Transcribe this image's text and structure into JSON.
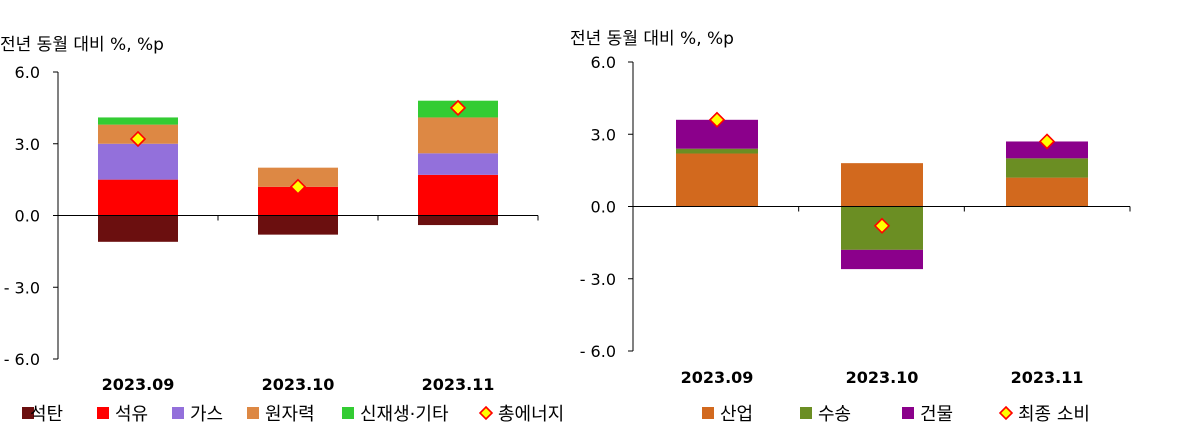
{
  "chart_data": [
    {
      "type": "bar",
      "stacked": true,
      "ylabel": "전년 동월 대비 %, %p",
      "ylim": [
        -6.0,
        6.0
      ],
      "yticks": [
        "6.0",
        "3.0",
        "0.0",
        "- 3.0",
        "- 6.0"
      ],
      "ytick_values": [
        6,
        3,
        0,
        -3,
        -6
      ],
      "categories": [
        "2023.09",
        "2023.10",
        "2023.11"
      ],
      "series": [
        {
          "name": "석탄",
          "color": "#6b0f0f",
          "values": [
            -1.1,
            -0.8,
            -0.4
          ]
        },
        {
          "name": "석유",
          "color": "#ff0000",
          "values": [
            1.5,
            1.2,
            1.7
          ]
        },
        {
          "name": "가스",
          "color": "#9370db",
          "values": [
            1.5,
            0.0,
            0.9
          ]
        },
        {
          "name": "원자력",
          "color": "#dd8844",
          "values": [
            0.8,
            0.8,
            1.5
          ]
        },
        {
          "name": "신재생·기타",
          "color": "#33cc33",
          "values": [
            0.3,
            0.0,
            0.7
          ]
        }
      ],
      "total": {
        "name": "총에너지",
        "values": [
          3.2,
          1.2,
          4.5
        ]
      },
      "legend_position": "bottom"
    },
    {
      "type": "bar",
      "stacked": true,
      "ylabel": "전년 동월 대비 %, %p",
      "ylim": [
        -6.0,
        6.0
      ],
      "yticks": [
        "6.0",
        "3.0",
        "0.0",
        "- 3.0",
        "- 6.0"
      ],
      "ytick_values": [
        6,
        3,
        0,
        -3,
        -6
      ],
      "categories": [
        "2023.09",
        "2023.10",
        "2023.11"
      ],
      "series": [
        {
          "name": "산업",
          "color": "#d2691e",
          "values": [
            2.2,
            1.8,
            1.2
          ]
        },
        {
          "name": "수송",
          "color": "#6b8e23",
          "values": [
            0.2,
            -1.8,
            0.8
          ]
        },
        {
          "name": "건물",
          "color": "#8b008b",
          "values": [
            1.2,
            -0.8,
            0.7
          ]
        }
      ],
      "total": {
        "name": "최종 소비",
        "values": [
          3.6,
          -0.8,
          2.7
        ]
      },
      "legend_position": "bottom"
    }
  ]
}
